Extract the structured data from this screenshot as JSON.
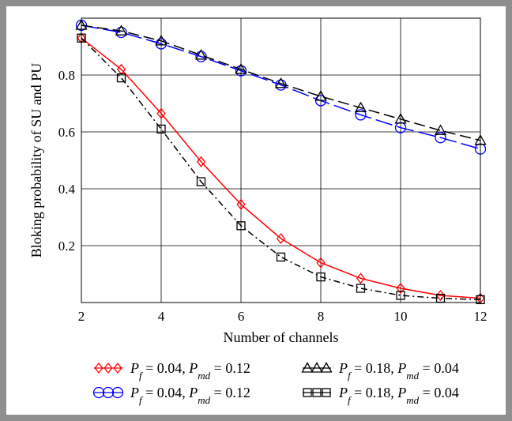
{
  "chart_data": {
    "type": "line",
    "title": "",
    "xlabel": "Number of channels",
    "ylabel": "Bloking probability of SU and PU",
    "xlim": [
      2,
      12
    ],
    "ylim": [
      0,
      1.0
    ],
    "xticks": [
      2,
      4,
      6,
      8,
      10,
      12
    ],
    "xtick_labels": [
      "2",
      "4",
      "6",
      "8",
      "10",
      "12"
    ],
    "yticks": [
      0.2,
      0.4,
      0.6,
      0.8
    ],
    "ytick_labels": [
      "0.2",
      "0.4",
      "0.6",
      "0.8"
    ],
    "grid": true,
    "legend_position": "bottom",
    "x": [
      2,
      3,
      4,
      5,
      6,
      7,
      8,
      9,
      10,
      11,
      12
    ],
    "series": [
      {
        "marker": "diamond",
        "color": "#ff0000",
        "dash": "solid",
        "legend": {
          "pf": "0.04",
          "pmd": "0.12"
        },
        "values": [
          0.93,
          0.82,
          0.665,
          0.495,
          0.345,
          0.225,
          0.14,
          0.085,
          0.05,
          0.025,
          0.015
        ]
      },
      {
        "marker": "circle",
        "color": "#0000ff",
        "dash": "longdash",
        "legend": {
          "pf": "0.04",
          "pmd": "0.12"
        },
        "values": [
          0.975,
          0.95,
          0.91,
          0.865,
          0.815,
          0.765,
          0.71,
          0.66,
          0.615,
          0.58,
          0.54
        ]
      },
      {
        "marker": "triangle",
        "color": "#000000",
        "dash": "dash",
        "legend": {
          "pf": "0.18",
          "pmd": "0.04"
        },
        "values": [
          0.975,
          0.955,
          0.92,
          0.87,
          0.82,
          0.77,
          0.725,
          0.685,
          0.645,
          0.605,
          0.57
        ]
      },
      {
        "marker": "square",
        "color": "#000000",
        "dash": "dashdot",
        "legend": {
          "pf": "0.18",
          "pmd": "0.04"
        },
        "values": [
          0.93,
          0.79,
          0.61,
          0.425,
          0.27,
          0.16,
          0.09,
          0.05,
          0.025,
          0.015,
          0.01
        ]
      }
    ]
  },
  "colors": {
    "frame": "#8f8f8f",
    "grid": "#000000"
  }
}
